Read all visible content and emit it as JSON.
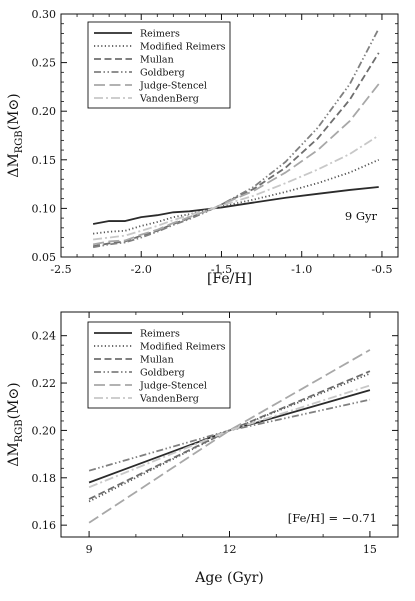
{
  "chart_data": [
    {
      "type": "line",
      "xlabel": "[Fe/H]",
      "ylabel": "ΔM_RGB(M⊙)",
      "xlim": [
        -2.5,
        -0.4
      ],
      "ylim": [
        0.05,
        0.3
      ],
      "xticks": [
        -2.5,
        -2.0,
        -1.5,
        -1.0,
        -0.5
      ],
      "xtick_labels": [
        "-2.5",
        "-2.0",
        "-1.5",
        "-1.0",
        "-0.5"
      ],
      "yticks": [
        0.05,
        0.1,
        0.15,
        0.2,
        0.25,
        0.3
      ],
      "ytick_labels": [
        "0.05",
        "0.10",
        "0.15",
        "0.20",
        "0.25",
        "0.30"
      ],
      "annotation": "9 Gyr",
      "grid": false,
      "legend_position": "top-left",
      "series": [
        {
          "name": "Reimers",
          "color": "#2b2b2b",
          "style": "solid",
          "x": [
            -2.3,
            -2.2,
            -2.1,
            -2.0,
            -1.9,
            -1.8,
            -1.7,
            -1.6,
            -1.55,
            -1.5,
            -1.3,
            -1.1,
            -0.9,
            -0.7,
            -0.52
          ],
          "y": [
            0.084,
            0.087,
            0.087,
            0.091,
            0.093,
            0.096,
            0.097,
            0.099,
            0.1,
            0.101,
            0.106,
            0.111,
            0.115,
            0.119,
            0.122
          ]
        },
        {
          "name": "Modified Reimers",
          "color": "#555555",
          "style": "dotted",
          "x": [
            -2.3,
            -2.2,
            -2.1,
            -2.0,
            -1.9,
            -1.8,
            -1.7,
            -1.6,
            -1.55,
            -1.5,
            -1.3,
            -1.1,
            -0.9,
            -0.7,
            -0.52
          ],
          "y": [
            0.074,
            0.076,
            0.077,
            0.082,
            0.086,
            0.091,
            0.094,
            0.098,
            0.1,
            0.102,
            0.109,
            0.117,
            0.126,
            0.137,
            0.15
          ]
        },
        {
          "name": "Mullan",
          "color": "#6e6e6e",
          "style": "dashed",
          "x": [
            -2.3,
            -2.2,
            -2.1,
            -2.0,
            -1.9,
            -1.8,
            -1.7,
            -1.6,
            -1.55,
            -1.5,
            -1.3,
            -1.1,
            -0.9,
            -0.7,
            -0.52
          ],
          "y": [
            0.061,
            0.064,
            0.066,
            0.072,
            0.077,
            0.084,
            0.09,
            0.097,
            0.1,
            0.104,
            0.12,
            0.142,
            0.172,
            0.212,
            0.26
          ]
        },
        {
          "name": "Goldberg",
          "color": "#808080",
          "style": "dashdotdot",
          "x": [
            -2.3,
            -2.2,
            -2.1,
            -2.0,
            -1.9,
            -1.8,
            -1.7,
            -1.6,
            -1.55,
            -1.5,
            -1.3,
            -1.1,
            -0.9,
            -0.7,
            -0.52
          ],
          "y": [
            0.06,
            0.063,
            0.065,
            0.07,
            0.076,
            0.083,
            0.089,
            0.096,
            0.1,
            0.104,
            0.122,
            0.148,
            0.183,
            0.228,
            0.285
          ]
        },
        {
          "name": "Judge-Stencel",
          "color": "#a8a8a8",
          "style": "longdash",
          "x": [
            -2.3,
            -2.2,
            -2.1,
            -2.0,
            -1.9,
            -1.8,
            -1.7,
            -1.6,
            -1.55,
            -1.5,
            -1.3,
            -1.1,
            -0.9,
            -0.7,
            -0.52
          ],
          "y": [
            0.063,
            0.066,
            0.067,
            0.073,
            0.078,
            0.085,
            0.091,
            0.097,
            0.1,
            0.104,
            0.118,
            0.137,
            0.16,
            0.19,
            0.228
          ]
        },
        {
          "name": "VandenBerg",
          "color": "#c8c8c8",
          "style": "dashdot",
          "x": [
            -2.3,
            -2.2,
            -2.1,
            -2.0,
            -1.9,
            -1.8,
            -1.7,
            -1.6,
            -1.55,
            -1.5,
            -1.3,
            -1.1,
            -0.9,
            -0.7,
            -0.52
          ],
          "y": [
            0.068,
            0.07,
            0.072,
            0.077,
            0.082,
            0.088,
            0.093,
            0.098,
            0.1,
            0.103,
            0.113,
            0.126,
            0.14,
            0.156,
            0.175
          ]
        }
      ]
    },
    {
      "type": "line",
      "xlabel": "Age (Gyr)",
      "ylabel": "ΔM_RGB(M⊙)",
      "xlim": [
        8.4,
        15.6
      ],
      "ylim": [
        0.155,
        0.25
      ],
      "xticks": [
        9,
        12,
        15
      ],
      "xtick_labels": [
        "9",
        "12",
        "15"
      ],
      "yticks": [
        0.16,
        0.18,
        0.2,
        0.22,
        0.24
      ],
      "ytick_labels": [
        "0.16",
        "0.18",
        "0.20",
        "0.22",
        "0.24"
      ],
      "annotation": "[Fe/H] = −0.71",
      "grid": false,
      "legend_position": "top-left",
      "series": [
        {
          "name": "Reimers",
          "color": "#2b2b2b",
          "style": "solid",
          "x": [
            9,
            12,
            15
          ],
          "y": [
            0.178,
            0.2,
            0.217
          ]
        },
        {
          "name": "Modified Reimers",
          "color": "#555555",
          "style": "dotted",
          "x": [
            9,
            12,
            15
          ],
          "y": [
            0.17,
            0.2,
            0.224
          ]
        },
        {
          "name": "Mullan",
          "color": "#6e6e6e",
          "style": "dashed",
          "x": [
            9,
            12,
            15
          ],
          "y": [
            0.171,
            0.2,
            0.225
          ]
        },
        {
          "name": "Goldberg",
          "color": "#808080",
          "style": "dashdotdot",
          "x": [
            9,
            12,
            15
          ],
          "y": [
            0.183,
            0.2,
            0.213
          ]
        },
        {
          "name": "Judge-Stencel",
          "color": "#a8a8a8",
          "style": "longdash",
          "x": [
            9,
            12,
            15
          ],
          "y": [
            0.161,
            0.2,
            0.234
          ]
        },
        {
          "name": "VandenBerg",
          "color": "#c8c8c8",
          "style": "dashdot",
          "x": [
            9,
            12,
            15
          ],
          "y": [
            0.176,
            0.2,
            0.219
          ]
        }
      ]
    }
  ]
}
